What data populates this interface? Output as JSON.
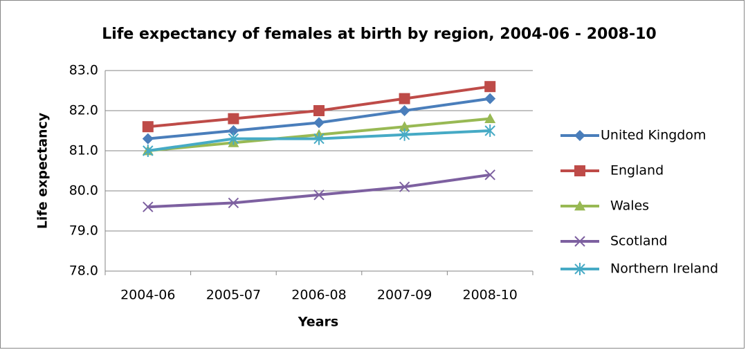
{
  "chart_data": {
    "type": "line",
    "title": "Life expectancy of females at birth by region, 2004-06 - 2008-10",
    "x_label": "Years",
    "y_label": "Life expectancy",
    "categories": [
      "2004-06",
      "2005-07",
      "2006-08",
      "2007-09",
      "2008-10"
    ],
    "series": [
      {
        "name": "United Kingdom",
        "color": "#4a7ebb",
        "marker": "diamond",
        "values": [
          81.3,
          81.5,
          81.7,
          82.0,
          82.3
        ]
      },
      {
        "name": "England",
        "color": "#be4b48",
        "marker": "square",
        "values": [
          81.6,
          81.8,
          82.0,
          82.3,
          82.6
        ]
      },
      {
        "name": "Wales",
        "color": "#98b954",
        "marker": "triangle",
        "values": [
          81.0,
          81.2,
          81.4,
          81.6,
          81.8
        ]
      },
      {
        "name": "Scotland",
        "color": "#7d60a0",
        "marker": "x",
        "values": [
          79.6,
          79.7,
          79.9,
          80.1,
          80.4
        ]
      },
      {
        "name": "Northern Ireland",
        "color": "#46aac5",
        "marker": "asterisk",
        "values": [
          81.0,
          81.3,
          81.3,
          81.4,
          81.5
        ]
      }
    ],
    "ylim": [
      78,
      83
    ],
    "yticks": [
      {
        "value": 78,
        "label": "78.0"
      },
      {
        "value": 79,
        "label": "79.0"
      },
      {
        "value": 80,
        "label": "80.0"
      },
      {
        "value": 81,
        "label": "81.0"
      },
      {
        "value": 82,
        "label": "82.0"
      },
      {
        "value": 83,
        "label": "83.0"
      }
    ],
    "grid": true,
    "legend": "right"
  }
}
